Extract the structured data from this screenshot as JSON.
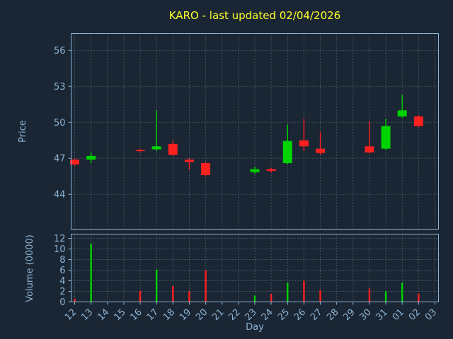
{
  "window": {
    "title": "KARO - last updated 02/04/2026"
  },
  "colors": {
    "background": "#1a2633",
    "axes": "#8db4d6",
    "grid": "#9aa8b6",
    "title": "#ffff2e",
    "up": "#00d400",
    "down": "#ff2020"
  },
  "chart_data": {
    "type": "candlestick",
    "title": "KARO - last updated 02/04/2026",
    "xlabel": "Day",
    "price_ylabel": "Price",
    "volume_ylabel": "Volume (0000)",
    "legend": "none",
    "grid": "dotted",
    "x_ticklabels": [
      "12",
      "13",
      "14",
      "15",
      "16",
      "17",
      "18",
      "19",
      "20",
      "21",
      "22",
      "23",
      "24",
      "25",
      "26",
      "27",
      "28",
      "29",
      "30",
      "31",
      "01",
      "02",
      "03"
    ],
    "price_ticks": [
      44,
      47,
      50,
      53,
      56
    ],
    "price_ylim": [
      41.1,
      57.4
    ],
    "volume_ticks": [
      0,
      2,
      4,
      6,
      8,
      10,
      12
    ],
    "volume_ylim": [
      0,
      12.8
    ],
    "candles": [
      {
        "day": "12",
        "open": 46.9,
        "high": 47.0,
        "low": 46.4,
        "close": 46.5,
        "volume": 0.6
      },
      {
        "day": "13",
        "open": 46.9,
        "high": 47.5,
        "low": 46.6,
        "close": 47.2,
        "volume": 11.0
      },
      {
        "day": "16",
        "open": 47.7,
        "high": 47.8,
        "low": 47.5,
        "close": 47.6,
        "volume": 2.1
      },
      {
        "day": "17",
        "open": 47.75,
        "high": 51.0,
        "low": 47.6,
        "close": 48.0,
        "volume": 6.1
      },
      {
        "day": "18",
        "open": 48.2,
        "high": 48.5,
        "low": 47.2,
        "close": 47.3,
        "volume": 3.0
      },
      {
        "day": "19",
        "open": 46.9,
        "high": 47.0,
        "low": 46.1,
        "close": 46.7,
        "volume": 2.0
      },
      {
        "day": "20",
        "open": 46.6,
        "high": 46.7,
        "low": 45.5,
        "close": 45.6,
        "volume": 6.0
      },
      {
        "day": "23",
        "open": 45.85,
        "high": 46.3,
        "low": 45.7,
        "close": 46.1,
        "volume": 1.2
      },
      {
        "day": "24",
        "open": 46.1,
        "high": 46.2,
        "low": 45.8,
        "close": 45.95,
        "volume": 1.5
      },
      {
        "day": "25",
        "open": 46.6,
        "high": 49.8,
        "low": 46.5,
        "close": 48.45,
        "volume": 3.6
      },
      {
        "day": "26",
        "open": 48.5,
        "high": 50.3,
        "low": 47.6,
        "close": 48.0,
        "volume": 4.0
      },
      {
        "day": "27",
        "open": 47.8,
        "high": 49.2,
        "low": 47.3,
        "close": 47.45,
        "volume": 2.2
      },
      {
        "day": "30",
        "open": 48.0,
        "high": 50.1,
        "low": 47.4,
        "close": 47.5,
        "volume": 2.5
      },
      {
        "day": "31",
        "open": 47.8,
        "high": 50.3,
        "low": 47.7,
        "close": 49.7,
        "volume": 2.0
      },
      {
        "day": "01",
        "open": 50.5,
        "high": 52.3,
        "low": 50.4,
        "close": 51.0,
        "volume": 3.6
      },
      {
        "day": "02",
        "open": 50.5,
        "high": 50.6,
        "low": 49.6,
        "close": 49.7,
        "volume": 1.6
      }
    ]
  }
}
